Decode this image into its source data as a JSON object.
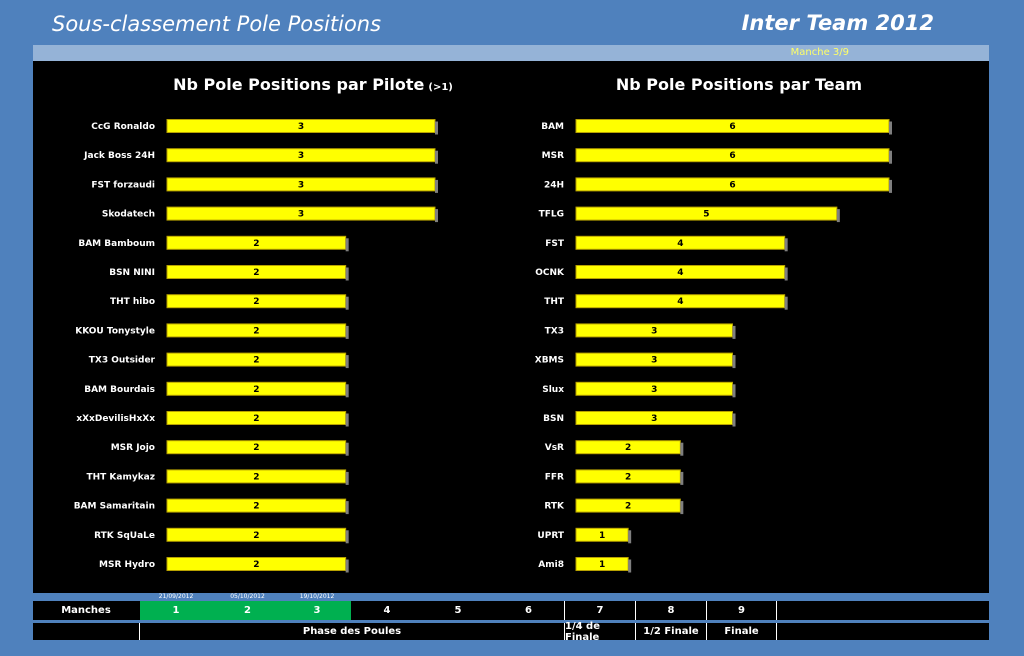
{
  "header": {
    "title": "Sous-classement Pole Positions",
    "brand": "Inter Team 2012",
    "manche": "Manche 3/9"
  },
  "chart_data": [
    {
      "type": "bar",
      "title": "Nb Pole Positions par Pilote",
      "title_suffix": "(>1)",
      "categories": [
        "CcG Ronaldo",
        "Jack Boss 24H",
        "FST forzaudi",
        "Skodatech",
        "BAM Bamboum",
        "BSN NINI",
        "THT hibo",
        "KKOU Tonystyle",
        "TX3 Outsider",
        "BAM Bourdais",
        "xXxDevilisHxXx",
        "MSR Jojo",
        "THT Kamykaz",
        "BAM Samaritain",
        "RTK SqUaLe",
        "MSR Hydro"
      ],
      "values": [
        3,
        3,
        3,
        3,
        2,
        2,
        2,
        2,
        2,
        2,
        2,
        2,
        2,
        2,
        2,
        2
      ],
      "xlim": [
        0,
        3
      ],
      "bar_color": "#ffff00"
    },
    {
      "type": "bar",
      "title": "Nb Pole Positions par Team",
      "categories": [
        "BAM",
        "MSR",
        "24H",
        "TFLG",
        "FST",
        "OCNK",
        "THT",
        "TX3",
        "XBMS",
        "Slux",
        "BSN",
        "VsR",
        "FFR",
        "RTK",
        "UPRT",
        "Ami8"
      ],
      "values": [
        6,
        6,
        6,
        5,
        4,
        4,
        4,
        3,
        3,
        3,
        3,
        2,
        2,
        2,
        1,
        1
      ],
      "xlim": [
        0,
        6
      ],
      "bar_color": "#ffff00"
    }
  ],
  "schedule": {
    "label": "Manches",
    "rounds": [
      "1",
      "2",
      "3",
      "4",
      "5",
      "6",
      "7",
      "8",
      "9"
    ],
    "dates": [
      "21/09/2012",
      "05/10/2012",
      "19/10/2012"
    ],
    "phase_pool": "Phase des Poules",
    "phase_quarter": "1/4 de Finale",
    "phase_semi": "1/2 Finale",
    "phase_final": "Finale"
  }
}
